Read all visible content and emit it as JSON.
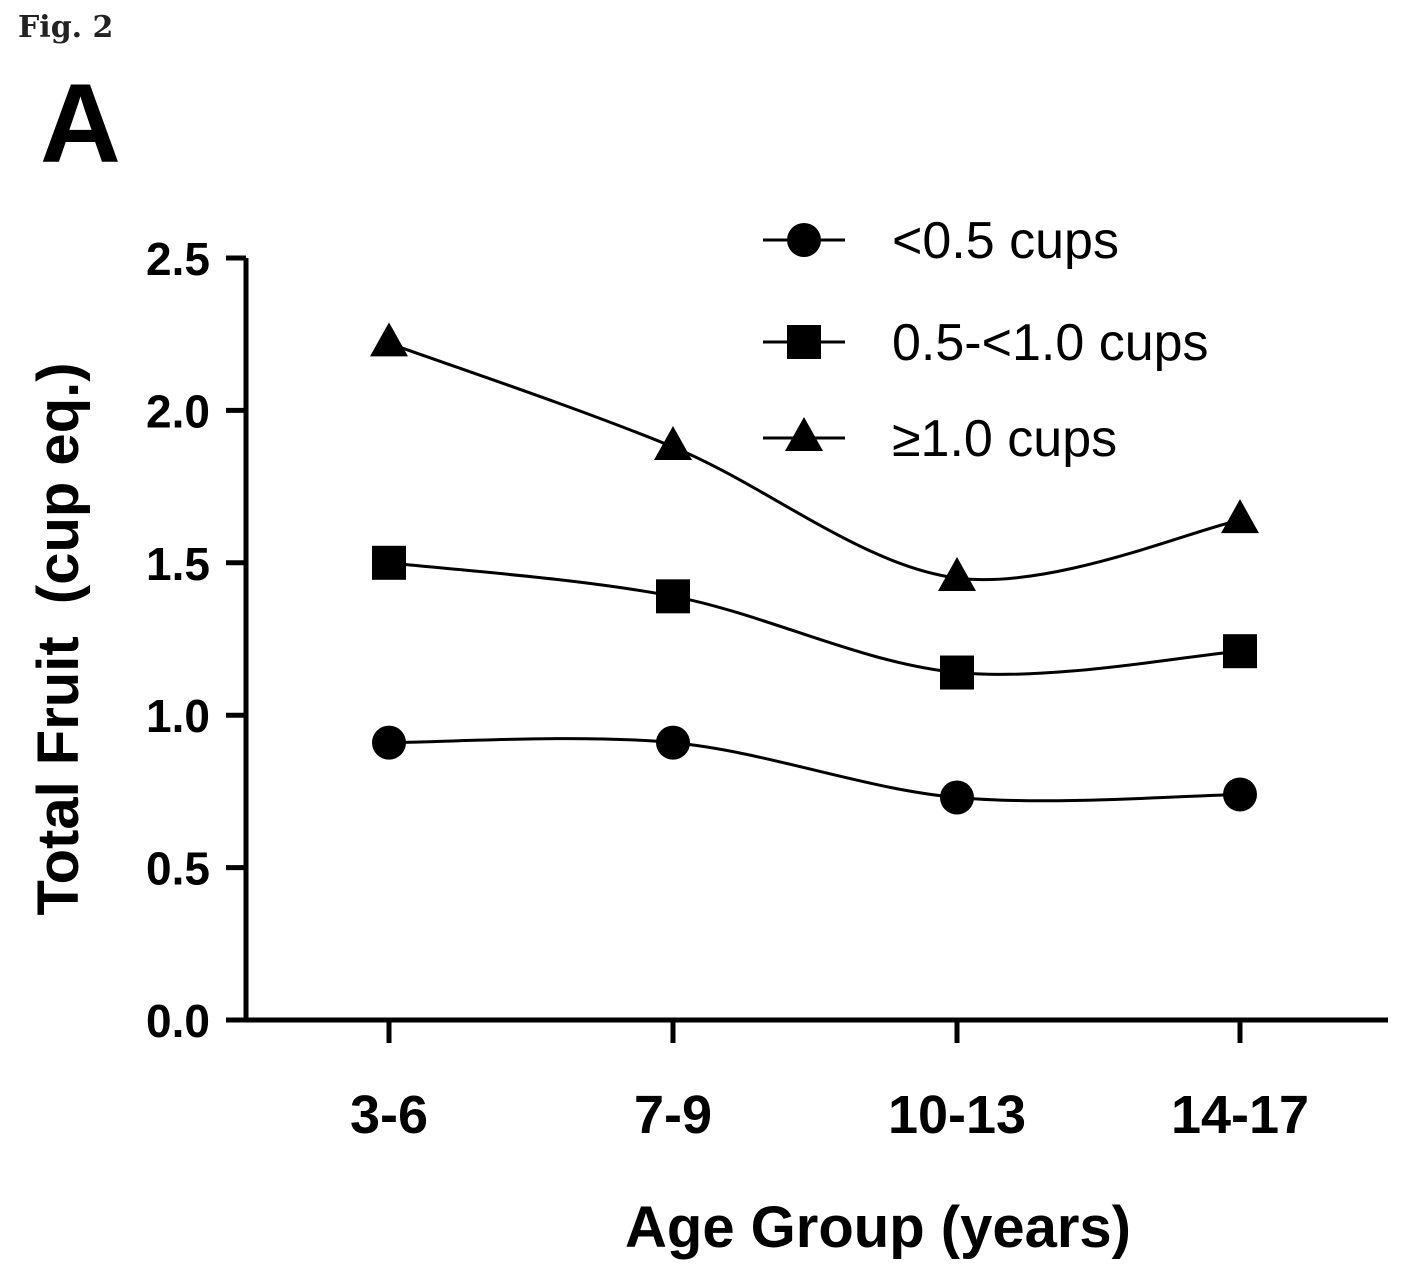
{
  "figure_label": "Fig. 2",
  "chart_data": {
    "type": "line",
    "panel_label": "A",
    "title": "",
    "xlabel": "Age Group (years)",
    "ylabel": "Total Fruit  (cup eq.)",
    "categories": [
      "3-6",
      "7-9",
      "10-13",
      "14-17"
    ],
    "ylim": [
      0,
      2.5
    ],
    "yticks": [
      "0.0",
      "0.5",
      "1.0",
      "1.5",
      "2.0",
      "2.5"
    ],
    "grid": false,
    "legend_position": "top-right",
    "series": [
      {
        "name": "<0.5 cups",
        "marker": "circle",
        "values": [
          0.91,
          0.91,
          0.73,
          0.74
        ]
      },
      {
        "name": "0.5-<1.0 cups",
        "marker": "square",
        "values": [
          1.5,
          1.39,
          1.14,
          1.21
        ]
      },
      {
        "name": "≥1.0 cups",
        "marker": "triangle",
        "values": [
          2.22,
          1.88,
          1.45,
          1.64
        ]
      }
    ]
  }
}
